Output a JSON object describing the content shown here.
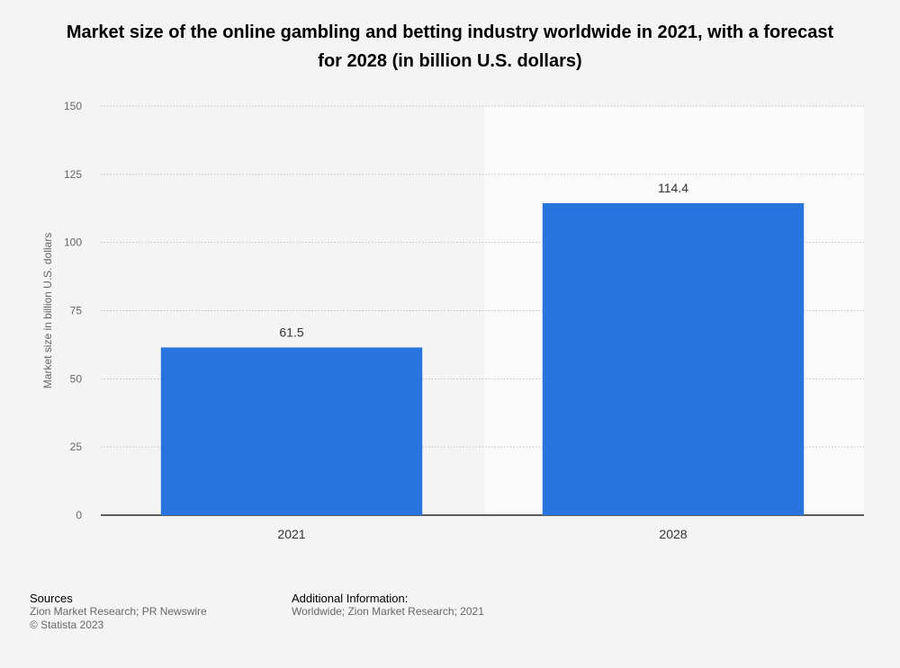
{
  "chart_data": {
    "type": "bar",
    "title": "Market size of the online gambling and betting industry worldwide in 2021, with a forecast for 2028 (in billion U.S. dollars)",
    "categories": [
      "2021",
      "2028"
    ],
    "values": [
      61.5,
      114.4
    ],
    "value_labels": [
      "61.5",
      "114.4"
    ],
    "ylabel": "Market size in billion U.S. dollars",
    "xlabel": "",
    "ylim": [
      0,
      150
    ],
    "yticks": [
      0,
      25,
      50,
      75,
      100,
      125,
      150
    ],
    "grid": true,
    "forecast_categories": [
      "2028"
    ],
    "bar_color": "#2876dd",
    "forecast_band_color": "#fafafa"
  },
  "footer": {
    "sources_title": "Sources",
    "sources_text": "Zion Market Research; PR Newswire",
    "copyright": "© Statista 2023",
    "info_title": "Additional Information:",
    "info_text": "Worldwide; Zion Market Research; 2021"
  }
}
